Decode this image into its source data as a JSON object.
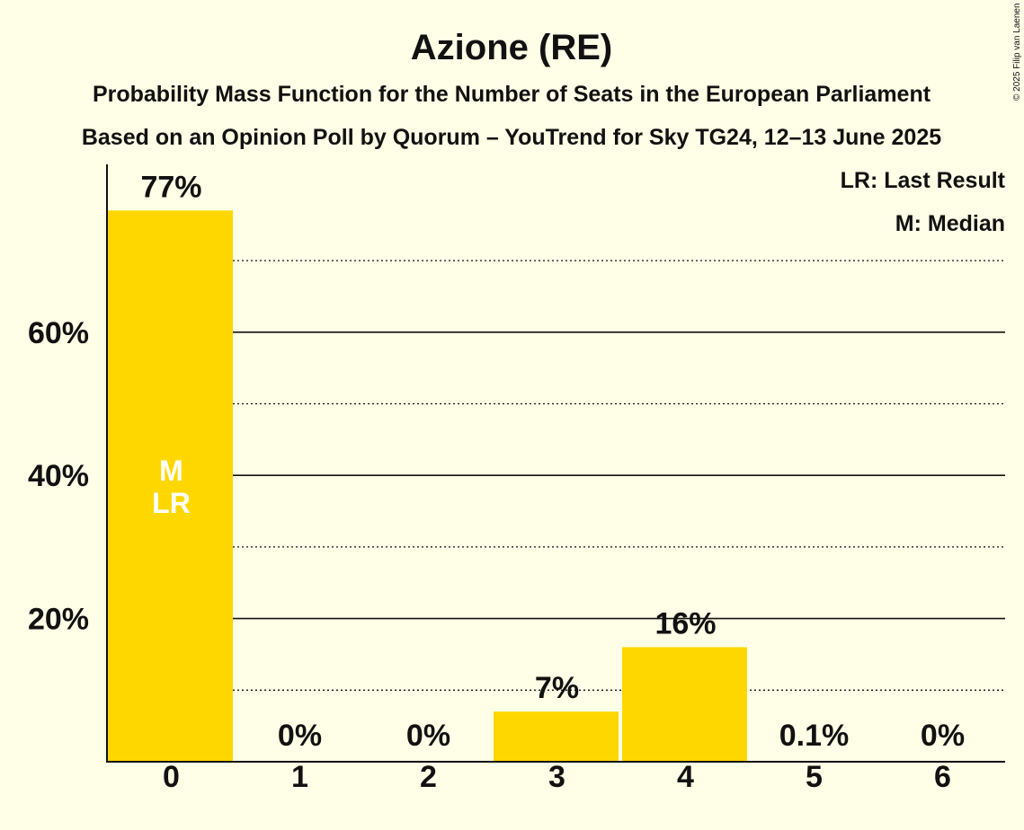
{
  "title": "Azione (RE)",
  "subtitle_line1": "Probability Mass Function for the Number of Seats in the European Parliament",
  "subtitle_line2": "Based on an Opinion Poll by Quorum – YouTrend for Sky TG24, 12–13 June 2025",
  "copyright": "© 2025 Filip van Laenen",
  "legend": {
    "last_result": "LR: Last Result",
    "median": "M: Median"
  },
  "colors": {
    "bar": "#FFD700",
    "background": "#FFFEE6",
    "axis": "#111111",
    "inbar_text": "#FFFFFF"
  },
  "chart_data": {
    "type": "bar",
    "title": "Azione (RE)",
    "xlabel": "",
    "ylabel": "",
    "categories": [
      "0",
      "1",
      "2",
      "3",
      "4",
      "5",
      "6"
    ],
    "values": [
      77,
      0,
      0,
      7,
      16,
      0.1,
      0
    ],
    "value_labels": [
      "77%",
      "0%",
      "0%",
      "7%",
      "16%",
      "0.1%",
      "0%"
    ],
    "median_index": 0,
    "last_result_index": 0,
    "inbar_labels": [
      "M",
      "LR"
    ],
    "ylim": [
      0,
      84
    ],
    "y_ticks": [
      20,
      40,
      60
    ],
    "y_tick_labels": [
      "20%",
      "40%",
      "60%"
    ],
    "minor_gridlines": [
      10,
      30,
      50,
      70
    ],
    "grid": true,
    "legend_placement": "top-right"
  }
}
